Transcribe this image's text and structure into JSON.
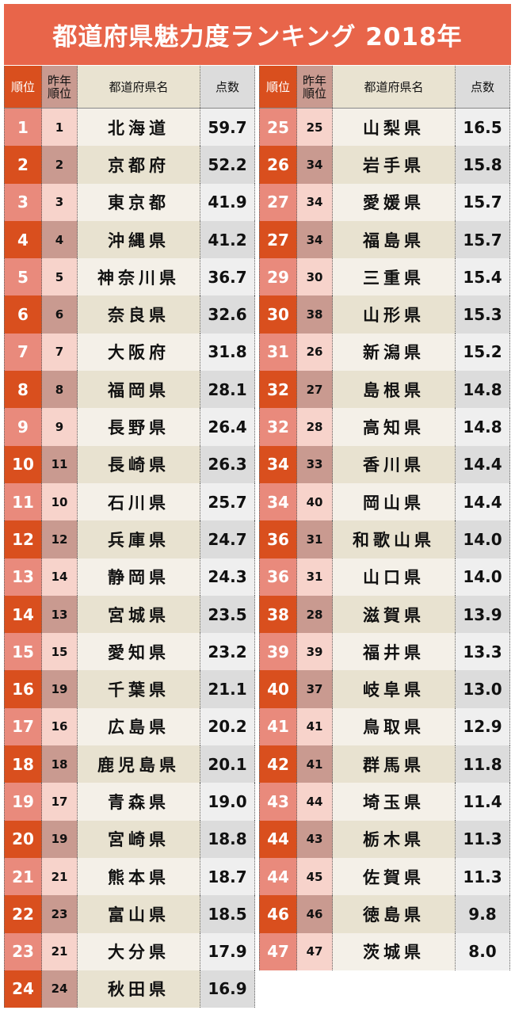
{
  "title": "都道府県魅力度ランキング 2018年",
  "headers": {
    "rank": "順位",
    "prev_rank": "昨年順位",
    "name": "都道府県名",
    "score": "点数"
  },
  "rows": [
    [
      "1",
      "1",
      "北海道",
      "59.7"
    ],
    [
      "2",
      "2",
      "京都府",
      "52.2"
    ],
    [
      "3",
      "3",
      "東京都",
      "41.9"
    ],
    [
      "4",
      "4",
      "沖縄県",
      "41.2"
    ],
    [
      "5",
      "5",
      "神奈川県",
      "36.7"
    ],
    [
      "6",
      "6",
      "奈良県",
      "32.6"
    ],
    [
      "7",
      "7",
      "大阪府",
      "31.8"
    ],
    [
      "8",
      "8",
      "福岡県",
      "28.1"
    ],
    [
      "9",
      "9",
      "長野県",
      "26.4"
    ],
    [
      "10",
      "11",
      "長崎県",
      "26.3"
    ],
    [
      "11",
      "10",
      "石川県",
      "25.7"
    ],
    [
      "12",
      "12",
      "兵庫県",
      "24.7"
    ],
    [
      "13",
      "14",
      "静岡県",
      "24.3"
    ],
    [
      "14",
      "13",
      "宮城県",
      "23.5"
    ],
    [
      "15",
      "15",
      "愛知県",
      "23.2"
    ],
    [
      "16",
      "19",
      "千葉県",
      "21.1"
    ],
    [
      "17",
      "16",
      "広島県",
      "20.2"
    ],
    [
      "18",
      "18",
      "鹿児島県",
      "20.1"
    ],
    [
      "19",
      "17",
      "青森県",
      "19.0"
    ],
    [
      "20",
      "19",
      "宮崎県",
      "18.8"
    ],
    [
      "21",
      "21",
      "熊本県",
      "18.7"
    ],
    [
      "22",
      "23",
      "富山県",
      "18.5"
    ],
    [
      "23",
      "21",
      "大分県",
      "17.9"
    ],
    [
      "24",
      "24",
      "秋田県",
      "16.9"
    ],
    [
      "25",
      "25",
      "山梨県",
      "16.5"
    ],
    [
      "26",
      "34",
      "岩手県",
      "15.8"
    ],
    [
      "27",
      "34",
      "愛媛県",
      "15.7"
    ],
    [
      "27",
      "34",
      "福島県",
      "15.7"
    ],
    [
      "29",
      "30",
      "三重県",
      "15.4"
    ],
    [
      "30",
      "38",
      "山形県",
      "15.3"
    ],
    [
      "31",
      "26",
      "新潟県",
      "15.2"
    ],
    [
      "32",
      "27",
      "島根県",
      "14.8"
    ],
    [
      "32",
      "28",
      "高知県",
      "14.8"
    ],
    [
      "34",
      "33",
      "香川県",
      "14.4"
    ],
    [
      "34",
      "40",
      "岡山県",
      "14.4"
    ],
    [
      "36",
      "31",
      "和歌山県",
      "14.0"
    ],
    [
      "36",
      "31",
      "山口県",
      "14.0"
    ],
    [
      "38",
      "28",
      "滋賀県",
      "13.9"
    ],
    [
      "39",
      "39",
      "福井県",
      "13.3"
    ],
    [
      "40",
      "37",
      "岐阜県",
      "13.0"
    ],
    [
      "41",
      "41",
      "鳥取県",
      "12.9"
    ],
    [
      "42",
      "41",
      "群馬県",
      "11.8"
    ],
    [
      "43",
      "44",
      "埼玉県",
      "11.4"
    ],
    [
      "44",
      "43",
      "栃木県",
      "11.3"
    ],
    [
      "44",
      "45",
      "佐賀県",
      "11.3"
    ],
    [
      "46",
      "46",
      "徳島県",
      "9.8"
    ],
    [
      "47",
      "47",
      "茨城県",
      "8.0"
    ]
  ]
}
